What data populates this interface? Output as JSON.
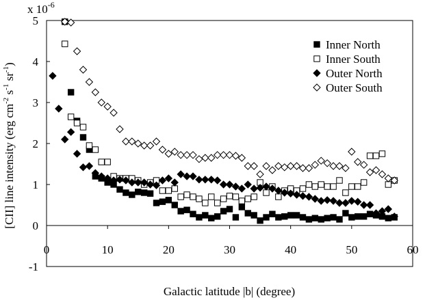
{
  "chart_data": {
    "type": "scatter",
    "xlabel": "Galactic latitude |b| (degree)",
    "ylabel_main": "[CII] line intensity (erg cm",
    "ylabel_sup1": "-2",
    "ylabel_mid": " s",
    "ylabel_sup2": "-1",
    "ylabel_mid2": " sr",
    "ylabel_sup3": "-1",
    "ylabel_end": ")",
    "y_multiplier_base": "x 10",
    "y_multiplier_exp": "-6",
    "xlim": [
      0,
      60
    ],
    "ylim": [
      -1,
      5
    ],
    "x_ticks": [
      0,
      10,
      20,
      30,
      40,
      50,
      60
    ],
    "y_ticks": [
      -1,
      0,
      1,
      2,
      3,
      4,
      5
    ],
    "x_tick_labels": [
      "0",
      "10",
      "20",
      "30",
      "40",
      "50",
      "60"
    ],
    "y_tick_labels": [
      "-1",
      "0",
      "1",
      "2",
      "3",
      "4",
      "5"
    ],
    "grid": false,
    "legend_position": "top-right",
    "series": [
      {
        "name": "Inner North",
        "marker": "filled-square",
        "x": [
          3,
          4,
          5,
          6,
          7,
          8,
          9,
          10,
          11,
          12,
          13,
          14,
          15,
          16,
          17,
          18,
          19,
          20,
          21,
          22,
          23,
          24,
          25,
          26,
          27,
          28,
          29,
          30,
          31,
          32,
          33,
          34,
          35,
          36,
          37,
          38,
          39,
          40,
          41,
          42,
          43,
          44,
          45,
          46,
          47,
          48,
          49,
          50,
          51,
          52,
          53,
          54,
          55,
          56,
          57
        ],
        "y": [
          4.97,
          3.25,
          2.55,
          2.15,
          1.85,
          1.2,
          1.15,
          1.05,
          1.0,
          0.88,
          0.8,
          0.75,
          0.82,
          0.8,
          0.78,
          0.55,
          0.58,
          0.62,
          0.5,
          0.35,
          0.38,
          0.28,
          0.2,
          0.25,
          0.18,
          0.22,
          0.35,
          0.4,
          0.2,
          0.45,
          0.3,
          0.25,
          0.12,
          0.2,
          0.28,
          0.2,
          0.22,
          0.25,
          0.25,
          0.2,
          0.15,
          0.18,
          0.15,
          0.18,
          0.2,
          0.15,
          0.3,
          0.2,
          0.22,
          0.22,
          0.28,
          0.25,
          0.22,
          0.18,
          0.2
        ]
      },
      {
        "name": "Inner South",
        "marker": "open-square",
        "x": [
          3,
          4,
          5,
          6,
          7,
          8,
          9,
          10,
          11,
          12,
          13,
          14,
          15,
          16,
          17,
          18,
          19,
          20,
          21,
          22,
          23,
          24,
          25,
          26,
          27,
          28,
          29,
          30,
          31,
          32,
          33,
          34,
          35,
          36,
          37,
          38,
          39,
          40,
          41,
          42,
          43,
          44,
          45,
          46,
          47,
          48,
          49,
          50,
          51,
          52,
          53,
          54,
          55,
          56,
          57
        ],
        "y": [
          4.43,
          2.65,
          2.5,
          2.4,
          1.95,
          1.85,
          1.55,
          1.55,
          1.2,
          1.15,
          1.15,
          1.15,
          1.1,
          1.0,
          1.05,
          1.1,
          0.85,
          0.85,
          0.9,
          0.7,
          0.75,
          0.7,
          0.65,
          0.55,
          0.7,
          0.55,
          0.65,
          0.72,
          0.7,
          0.6,
          0.65,
          0.7,
          1.05,
          0.8,
          0.95,
          0.7,
          0.85,
          0.9,
          0.85,
          0.9,
          1.0,
          0.95,
          1.0,
          0.95,
          0.95,
          1.1,
          0.8,
          0.95,
          0.95,
          1.05,
          1.7,
          1.7,
          1.75,
          1.0,
          1.1
        ]
      },
      {
        "name": "Outer North",
        "marker": "filled-diamond",
        "x": [
          1,
          2,
          3,
          4,
          5,
          6,
          7,
          8,
          9,
          10,
          11,
          12,
          13,
          14,
          15,
          16,
          17,
          18,
          19,
          20,
          21,
          22,
          23,
          24,
          25,
          26,
          27,
          28,
          29,
          30,
          31,
          32,
          33,
          34,
          35,
          36,
          37,
          38,
          39,
          40,
          41,
          42,
          43,
          44,
          45,
          46,
          47,
          48,
          49,
          50,
          51,
          52,
          53,
          54,
          55,
          56,
          57
        ],
        "y": [
          3.65,
          2.85,
          2.1,
          2.28,
          1.75,
          1.42,
          1.45,
          1.28,
          1.2,
          1.15,
          1.1,
          1.12,
          1.1,
          1.05,
          1.05,
          1.05,
          1.0,
          0.98,
          1.1,
          1.15,
          1.05,
          1.25,
          1.2,
          1.2,
          1.12,
          1.12,
          1.12,
          1.1,
          1.0,
          1.0,
          0.95,
          0.9,
          1.0,
          0.9,
          0.92,
          0.95,
          0.9,
          0.85,
          0.8,
          0.78,
          0.75,
          0.72,
          0.7,
          0.65,
          0.6,
          0.62,
          0.6,
          0.55,
          0.55,
          0.6,
          0.58,
          0.5,
          0.5,
          0.3,
          0.35,
          0.4,
          0.22
        ]
      },
      {
        "name": "Outer South",
        "marker": "open-diamond",
        "x": [
          3,
          4,
          5,
          6,
          7,
          8,
          9,
          10,
          11,
          12,
          13,
          14,
          15,
          16,
          17,
          18,
          19,
          20,
          21,
          22,
          23,
          24,
          25,
          26,
          27,
          28,
          29,
          30,
          31,
          32,
          33,
          34,
          35,
          36,
          37,
          38,
          39,
          40,
          41,
          42,
          43,
          44,
          45,
          46,
          47,
          48,
          49,
          50,
          51,
          52,
          53,
          54,
          55,
          56,
          57
        ],
        "y": [
          4.97,
          4.95,
          4.25,
          3.8,
          3.5,
          3.25,
          3.0,
          2.9,
          2.75,
          2.35,
          2.05,
          2.05,
          2.0,
          1.95,
          1.95,
          2.05,
          1.85,
          1.75,
          1.8,
          1.72,
          1.72,
          1.72,
          1.62,
          1.65,
          1.65,
          1.72,
          1.72,
          1.72,
          1.7,
          1.65,
          1.45,
          1.45,
          1.25,
          1.45,
          1.35,
          1.45,
          1.42,
          1.45,
          1.45,
          1.4,
          1.4,
          1.48,
          1.58,
          1.52,
          1.45,
          1.45,
          1.4,
          1.8,
          1.55,
          1.48,
          1.3,
          1.35,
          1.25,
          1.15,
          1.1
        ]
      }
    ]
  }
}
